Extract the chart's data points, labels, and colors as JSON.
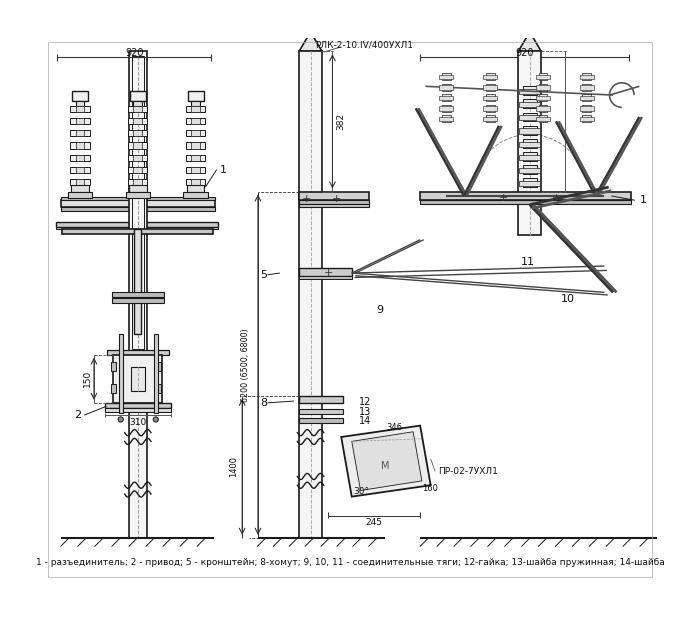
{
  "background_color": "#ffffff",
  "caption": "1 - разъединитель; 2 - привод; 5 - кронштейн; 8-хомут; 9, 10, 11 - соединительные тяги; 12-гайка; 13-шайба пружинная; 14-шайба",
  "label_rlk": "РЛК-2-10.IV/400УХЛ1",
  "label_pr": "ПР-02-7УХЛ1",
  "line_color": "#1a1a1a",
  "dim_920_1": "920",
  "dim_920_2": "920",
  "dim_382": "382",
  "dim_6200": "6200 (6500, 6800)",
  "dim_1400": "1400",
  "dim_150": "150",
  "dim_310": "310",
  "dim_245": "245",
  "dim_30": "30°",
  "dim_160": "160",
  "dim_346": "346"
}
